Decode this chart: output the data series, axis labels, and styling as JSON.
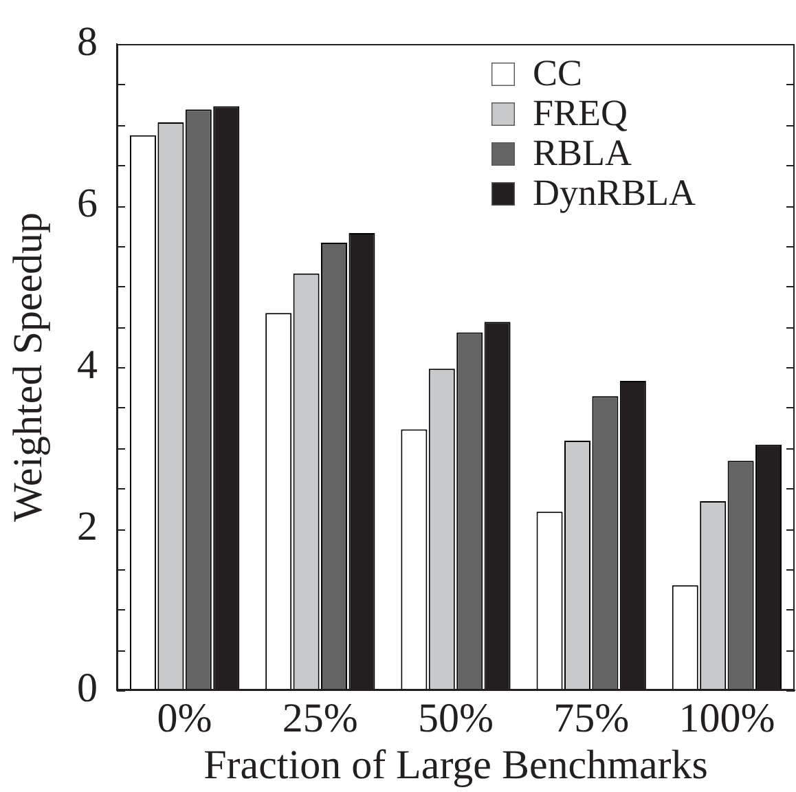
{
  "chart_data": {
    "type": "bar",
    "xlabel": "Fraction of Large Benchmarks",
    "ylabel": "Weighted Speedup",
    "categories": [
      "0%",
      "25%",
      "50%",
      "75%",
      "100%"
    ],
    "series": [
      {
        "name": "CC",
        "color": "#ffffff",
        "values": [
          6.87,
          4.67,
          3.23,
          2.21,
          1.3
        ]
      },
      {
        "name": "FREQ",
        "color": "#c8c9cb",
        "values": [
          7.03,
          5.16,
          3.98,
          3.09,
          2.34
        ]
      },
      {
        "name": "RBLA",
        "color": "#646464",
        "values": [
          7.19,
          5.54,
          4.43,
          3.64,
          2.84
        ]
      },
      {
        "name": "DynRBLA",
        "color": "#231f20",
        "values": [
          7.23,
          5.66,
          4.56,
          3.83,
          3.04
        ]
      }
    ],
    "ylim": [
      0,
      8
    ],
    "yticks": [
      0,
      {
        "value": 0.5,
        "label": null
      },
      {
        "value": 1,
        "label": null
      },
      {
        "value": 1.5,
        "label": null
      },
      2,
      {
        "value": 2.5,
        "label": null
      },
      {
        "value": 3,
        "label": null
      },
      {
        "value": 3.5,
        "label": null
      },
      4,
      {
        "value": 4.5,
        "label": null
      },
      {
        "value": 5,
        "label": null
      },
      {
        "value": 5.5,
        "label": null
      },
      6,
      {
        "value": 6.5,
        "label": null
      },
      {
        "value": 7,
        "label": null
      },
      {
        "value": 7.5,
        "label": null
      },
      8
    ],
    "grid": false,
    "legend": "top right"
  }
}
